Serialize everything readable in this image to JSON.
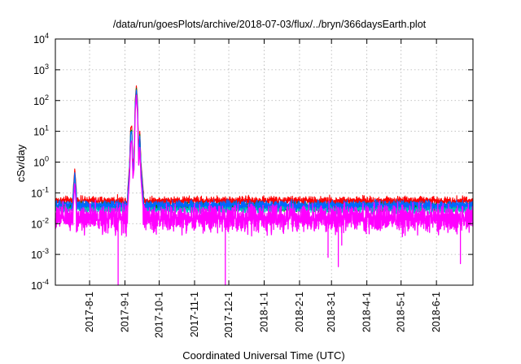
{
  "chart_data": {
    "type": "line",
    "title": "/data/run/goesPlots/archive/2018-07-03/flux/../bryn/366daysEarth.plot",
    "xlabel": "Coordinated Universal Time (UTC)",
    "ylabel": "cSv/day",
    "yscale": "log",
    "ylim": [
      0.0001,
      10000
    ],
    "xlim": [
      "2017-07-02",
      "2018-07-03"
    ],
    "grid": true,
    "y_ticks": [
      {
        "base": "10",
        "exp": "-4",
        "value": 0.0001
      },
      {
        "base": "10",
        "exp": "-3",
        "value": 0.001
      },
      {
        "base": "10",
        "exp": "-2",
        "value": 0.01
      },
      {
        "base": "10",
        "exp": "-1",
        "value": 0.1
      },
      {
        "base": "10",
        "exp": "0",
        "value": 1
      },
      {
        "base": "10",
        "exp": "1",
        "value": 10
      },
      {
        "base": "10",
        "exp": "2",
        "value": 100
      },
      {
        "base": "10",
        "exp": "3",
        "value": 1000
      },
      {
        "base": "10",
        "exp": "4",
        "value": 10000
      }
    ],
    "x_ticks": [
      "2017-8-1",
      "2017-9-1",
      "2017-10-1",
      "2017-11-1",
      "2017-12-1",
      "2018-1-1",
      "2018-2-1",
      "2018-3-1",
      "2018-4-1",
      "2018-5-1",
      "2018-6-1"
    ],
    "series": [
      {
        "color": "#ff0000",
        "baseline": 0.055,
        "scale": 1.5,
        "dips": [],
        "points": [
          [
            "2017-07-17",
            0.06
          ],
          [
            "2017-07-19",
            0.6
          ],
          [
            "2017-07-21",
            0.06
          ],
          [
            "2017-09-03",
            0.07
          ],
          [
            "2017-09-05",
            0.8
          ],
          [
            "2017-09-06",
            13
          ],
          [
            "2017-09-07",
            15
          ],
          [
            "2017-09-08",
            0.8
          ],
          [
            "2017-09-09",
            1.5
          ],
          [
            "2017-09-10",
            100
          ],
          [
            "2017-09-11",
            300
          ],
          [
            "2017-09-12",
            100
          ],
          [
            "2017-09-13",
            2
          ],
          [
            "2017-09-14",
            10
          ],
          [
            "2017-09-15",
            1
          ],
          [
            "2017-09-17",
            0.12
          ],
          [
            "2017-09-19",
            0.06
          ]
        ]
      },
      {
        "color": "#008000",
        "baseline": 0.035,
        "scale": 1.5,
        "dips": [],
        "points": [
          [
            "2017-07-17",
            0.04
          ],
          [
            "2017-07-19",
            0.4
          ],
          [
            "2017-07-21",
            0.04
          ],
          [
            "2017-09-03",
            0.05
          ],
          [
            "2017-09-05",
            0.6
          ],
          [
            "2017-09-06",
            10
          ],
          [
            "2017-09-07",
            11
          ],
          [
            "2017-09-08",
            0.6
          ],
          [
            "2017-09-09",
            1.2
          ],
          [
            "2017-09-10",
            80
          ],
          [
            "2017-09-11",
            250
          ],
          [
            "2017-09-12",
            80
          ],
          [
            "2017-09-13",
            1.5
          ],
          [
            "2017-09-14",
            8
          ],
          [
            "2017-09-15",
            0.8
          ],
          [
            "2017-09-17",
            0.08
          ],
          [
            "2017-09-19",
            0.04
          ]
        ]
      },
      {
        "color": "#00bfbf",
        "baseline": 0.03,
        "scale": 1.5,
        "dips": [],
        "points": [
          [
            "2017-07-17",
            0.035
          ],
          [
            "2017-07-19",
            0.35
          ],
          [
            "2017-07-21",
            0.035
          ],
          [
            "2017-09-03",
            0.04
          ],
          [
            "2017-09-05",
            0.5
          ],
          [
            "2017-09-06",
            8
          ],
          [
            "2017-09-07",
            9
          ],
          [
            "2017-09-08",
            0.5
          ],
          [
            "2017-09-09",
            1
          ],
          [
            "2017-09-10",
            60
          ],
          [
            "2017-09-11",
            200
          ],
          [
            "2017-09-12",
            60
          ],
          [
            "2017-09-13",
            1.2
          ],
          [
            "2017-09-14",
            6
          ],
          [
            "2017-09-15",
            0.6
          ],
          [
            "2017-09-17",
            0.07
          ],
          [
            "2017-09-19",
            0.035
          ]
        ]
      },
      {
        "color": "#0066ff",
        "baseline": 0.04,
        "scale": 1.5,
        "dips": [],
        "points": [
          [
            "2017-07-17",
            0.045
          ],
          [
            "2017-07-19",
            0.45
          ],
          [
            "2017-07-21",
            0.045
          ],
          [
            "2017-09-03",
            0.05
          ],
          [
            "2017-09-05",
            0.6
          ],
          [
            "2017-09-06",
            9
          ],
          [
            "2017-09-07",
            10
          ],
          [
            "2017-09-08",
            0.6
          ],
          [
            "2017-09-09",
            1.1
          ],
          [
            "2017-09-10",
            70
          ],
          [
            "2017-09-11",
            220
          ],
          [
            "2017-09-12",
            70
          ],
          [
            "2017-09-13",
            1.3
          ],
          [
            "2017-09-14",
            7
          ],
          [
            "2017-09-15",
            0.7
          ],
          [
            "2017-09-17",
            0.08
          ],
          [
            "2017-09-19",
            0.045
          ]
        ]
      },
      {
        "color": "#ff00ff",
        "baseline": 0.015,
        "scale": 3.5,
        "points": [
          [
            "2017-07-17",
            0.015
          ],
          [
            "2017-07-19",
            0.2
          ],
          [
            "2017-07-21",
            0.015
          ],
          [
            "2017-09-03",
            0.02
          ],
          [
            "2017-09-05",
            0.3
          ],
          [
            "2017-09-06",
            4
          ],
          [
            "2017-09-07",
            5
          ],
          [
            "2017-09-08",
            0.3
          ],
          [
            "2017-09-09",
            0.6
          ],
          [
            "2017-09-10",
            40
          ],
          [
            "2017-09-11",
            150
          ],
          [
            "2017-09-12",
            40
          ],
          [
            "2017-09-13",
            0.8
          ],
          [
            "2017-09-14",
            3
          ],
          [
            "2017-09-15",
            0.3
          ],
          [
            "2017-09-17",
            0.03
          ],
          [
            "2017-09-19",
            0.015
          ]
        ],
        "dips": [
          [
            "2017-08-26",
            0.0001
          ],
          [
            "2017-11-28",
            0.0001
          ],
          [
            "2018-02-26",
            0.0008
          ],
          [
            "2018-03-07",
            0.0004
          ],
          [
            "2018-03-10",
            0.002
          ],
          [
            "2018-06-22",
            0.0005
          ]
        ]
      }
    ]
  }
}
